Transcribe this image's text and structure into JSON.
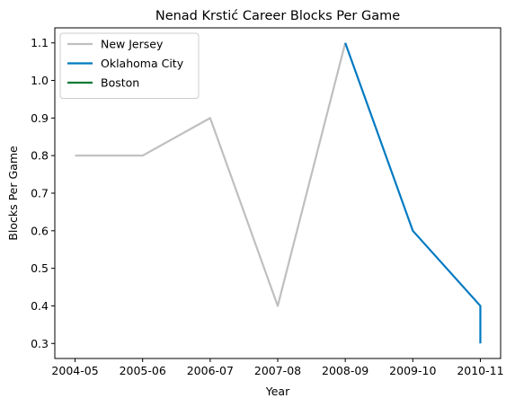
{
  "chart_data": {
    "type": "line",
    "title": "Nenad Krstić Career Blocks Per Game",
    "xlabel": "Year",
    "ylabel": "Blocks Per Game",
    "categories": [
      "2004-05",
      "2005-06",
      "2006-07",
      "2007-08",
      "2008-09",
      "2009-10",
      "2010-11"
    ],
    "yticks": [
      "0.3",
      "0.4",
      "0.5",
      "0.6",
      "0.7",
      "0.8",
      "0.9",
      "1.0",
      "1.1"
    ],
    "ylim": [
      0.26,
      1.14
    ],
    "grid": false,
    "legend_position": "top-left",
    "series": [
      {
        "name": "New Jersey",
        "color": "#bfbfbf",
        "x": [
          0,
          1,
          2,
          3,
          4
        ],
        "values": [
          0.8,
          0.8,
          0.9,
          0.4,
          1.1
        ]
      },
      {
        "name": "Oklahoma City",
        "color": "#007ac1",
        "x": [
          4,
          5,
          6,
          6
        ],
        "values": [
          1.1,
          0.6,
          0.4,
          0.3
        ]
      },
      {
        "name": "Boston",
        "color": "#007a33",
        "x": [
          6
        ],
        "values": [
          0.3
        ]
      }
    ]
  }
}
